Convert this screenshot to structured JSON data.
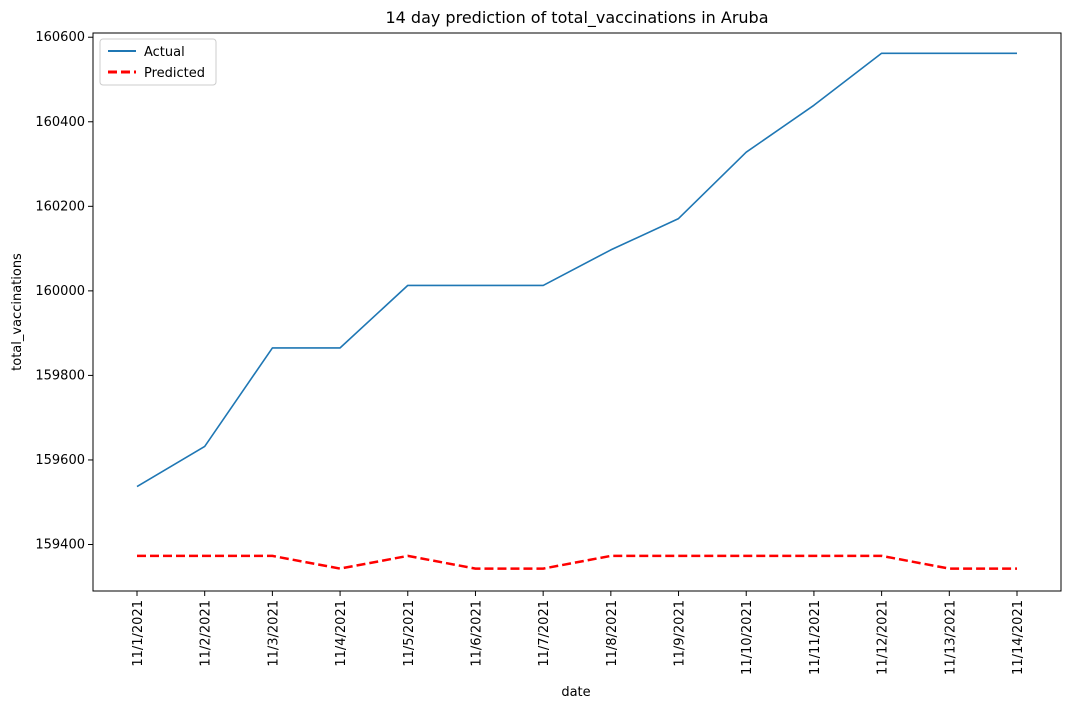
{
  "chart_data": {
    "type": "line",
    "title": "14 day prediction of total_vaccinations in Aruba",
    "xlabel": "date",
    "ylabel": "total_vaccinations",
    "categories": [
      "11/1/2021",
      "11/2/2021",
      "11/3/2021",
      "11/4/2021",
      "11/5/2021",
      "11/6/2021",
      "11/7/2021",
      "11/8/2021",
      "11/9/2021",
      "11/10/2021",
      "11/11/2021",
      "11/12/2021",
      "11/13/2021",
      "11/14/2021"
    ],
    "yticks": [
      159400,
      159600,
      159800,
      160000,
      160200,
      160400,
      160600
    ],
    "ylim": [
      159290,
      160610
    ],
    "grid": false,
    "legend_position": "upper left",
    "series": [
      {
        "name": "Actual",
        "color": "#1f77b4",
        "dash": "solid",
        "values": [
          159537,
          159632,
          159865,
          159865,
          160013,
          160013,
          160013,
          160097,
          160171,
          160328,
          160439,
          160562,
          160562,
          160562
        ]
      },
      {
        "name": "Predicted",
        "color": "#ff0000",
        "dash": "dashed",
        "values": [
          159373,
          159373,
          159373,
          159343,
          159373,
          159343,
          159343,
          159373,
          159373,
          159373,
          159373,
          159373,
          159343,
          159343
        ]
      }
    ]
  }
}
